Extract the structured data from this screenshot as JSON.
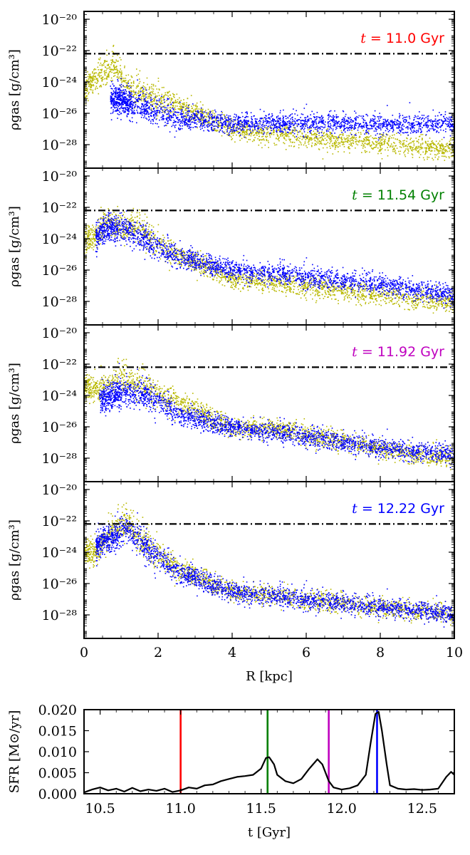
{
  "colors": {
    "yellow": "#b8b800",
    "blue": "#0000ff",
    "red": "#ff0000",
    "green": "#008000",
    "magenta": "#bf00bf",
    "threshold": "#000000",
    "sfr_line": "#000000"
  },
  "density": {
    "ylabel": "ρgas [g/cm³]",
    "y_ticks": [
      "10⁻²⁰",
      "10⁻²²",
      "10⁻²⁴",
      "10⁻²⁶",
      "10⁻²⁸"
    ],
    "y_tick_exps": [
      -20,
      -22,
      -24,
      -26,
      -28
    ],
    "x_ticks": [
      "0",
      "2",
      "4",
      "6",
      "8",
      "10"
    ],
    "x_tick_values": [
      0,
      2,
      4,
      6,
      8,
      10
    ],
    "xlabel": "R [kpc]",
    "threshold_log10": -22.2
  },
  "chart_data": [
    {
      "type": "scatter",
      "title": "t = 11.0 Gyr",
      "label_color": "#ff0000",
      "xlabel": "R [kpc]",
      "ylabel": "ρgas [g/cm³]",
      "xlim": [
        0,
        10
      ],
      "ylim_log10": [
        -29.5,
        -19.5
      ],
      "series": [
        {
          "name": "yellow",
          "color": "#b8b800",
          "points": [
            [
              0.1,
              -24.2
            ],
            [
              0.4,
              -23.6
            ],
            [
              0.8,
              -23.0
            ],
            [
              1.2,
              -24.4
            ],
            [
              1.8,
              -25.0
            ],
            [
              2.5,
              -25.5
            ],
            [
              4.0,
              -27.0
            ],
            [
              6.0,
              -27.5
            ],
            [
              8.0,
              -27.9
            ],
            [
              10.0,
              -28.3
            ]
          ]
        },
        {
          "name": "blue",
          "color": "#0000ff",
          "points": [
            [
              0.7,
              -25.0
            ],
            [
              1.5,
              -25.5
            ],
            [
              2.5,
              -26.3
            ],
            [
              4.0,
              -26.6
            ],
            [
              6.0,
              -26.6
            ],
            [
              8.0,
              -26.7
            ],
            [
              10.0,
              -26.6
            ]
          ]
        }
      ],
      "text_items": [
        "t =",
        "11.0 Gyr"
      ]
    },
    {
      "type": "scatter",
      "title": "t = 11.54 Gyr",
      "label_color": "#008000",
      "xlabel": "R [kpc]",
      "ylabel": "ρgas [g/cm³]",
      "xlim": [
        0,
        10
      ],
      "ylim_log10": [
        -29.5,
        -19.5
      ],
      "series": [
        {
          "name": "yellow",
          "color": "#b8b800",
          "points": [
            [
              0.2,
              -24.0
            ],
            [
              0.6,
              -23.0
            ],
            [
              1.0,
              -23.3
            ],
            [
              1.5,
              -23.2
            ],
            [
              2.0,
              -24.5
            ],
            [
              2.5,
              -25.0
            ],
            [
              4.0,
              -26.5
            ],
            [
              6.0,
              -27.0
            ],
            [
              8.0,
              -27.6
            ],
            [
              10.0,
              -28.1
            ]
          ]
        },
        {
          "name": "blue",
          "color": "#0000ff",
          "points": [
            [
              0.3,
              -23.8
            ],
            [
              0.7,
              -23.2
            ],
            [
              1.2,
              -23.5
            ],
            [
              1.8,
              -24.2
            ],
            [
              2.5,
              -25.1
            ],
            [
              4.0,
              -26.0
            ],
            [
              6.0,
              -26.4
            ],
            [
              8.0,
              -26.9
            ],
            [
              10.0,
              -27.6
            ]
          ]
        }
      ],
      "text_items": [
        "t =",
        "11.54 Gyr"
      ]
    },
    {
      "type": "scatter",
      "title": "t = 11.92 Gyr",
      "label_color": "#bf00bf",
      "xlabel": "R [kpc]",
      "ylabel": "ρgas [g/cm³]",
      "xlim": [
        0,
        10
      ],
      "ylim_log10": [
        -29.5,
        -19.5
      ],
      "series": [
        {
          "name": "yellow",
          "color": "#b8b800",
          "points": [
            [
              0.5,
              -23.5
            ],
            [
              1.0,
              -23.0
            ],
            [
              1.5,
              -23.3
            ],
            [
              2.0,
              -24.0
            ],
            [
              2.5,
              -24.4
            ],
            [
              4.0,
              -26.0
            ],
            [
              5.5,
              -26.2
            ],
            [
              8.0,
              -27.4
            ],
            [
              10.0,
              -28.0
            ]
          ]
        },
        {
          "name": "blue",
          "color": "#0000ff",
          "points": [
            [
              0.4,
              -24.3
            ],
            [
              1.0,
              -23.8
            ],
            [
              1.8,
              -24.0
            ],
            [
              2.5,
              -25.2
            ],
            [
              4.0,
              -26.0
            ],
            [
              6.0,
              -26.6
            ],
            [
              8.0,
              -27.3
            ],
            [
              10.0,
              -27.8
            ]
          ]
        }
      ],
      "text_items": [
        "t =",
        "11.92 Gyr"
      ]
    },
    {
      "type": "scatter",
      "title": "t = 12.22 Gyr",
      "label_color": "#0000ff",
      "xlabel": "R [kpc]",
      "ylabel": "ρgas [g/cm³]",
      "xlim": [
        0,
        10
      ],
      "ylim_log10": [
        -29.5,
        -19.5
      ],
      "series": [
        {
          "name": "yellow",
          "color": "#b8b800",
          "points": [
            [
              0.3,
              -24.0
            ],
            [
              0.8,
              -22.5
            ],
            [
              1.2,
              -22.2
            ],
            [
              1.8,
              -23.8
            ],
            [
              2.5,
              -25.0
            ],
            [
              4.0,
              -26.5
            ],
            [
              6.0,
              -27.0
            ],
            [
              8.0,
              -27.5
            ],
            [
              10.0,
              -27.9
            ]
          ]
        },
        {
          "name": "blue",
          "color": "#0000ff",
          "points": [
            [
              0.3,
              -23.5
            ],
            [
              0.8,
              -23.0
            ],
            [
              1.2,
              -22.5
            ],
            [
              1.6,
              -23.5
            ],
            [
              2.5,
              -25.2
            ],
            [
              4.0,
              -26.5
            ],
            [
              6.0,
              -27.0
            ],
            [
              8.0,
              -27.5
            ],
            [
              10.0,
              -27.9
            ]
          ]
        }
      ],
      "text_items": [
        "t =",
        "12.22 Gyr"
      ]
    },
    {
      "type": "line",
      "title": "",
      "xlabel": "t [Gyr]",
      "ylabel": "SFR [M⊙/yr]",
      "xlim": [
        10.4,
        12.7
      ],
      "ylim": [
        0,
        0.02
      ],
      "x_ticks": [
        "10.5",
        "11.0",
        "11.5",
        "12.0",
        "12.5"
      ],
      "x_tick_values": [
        10.5,
        11.0,
        11.5,
        12.0,
        12.5
      ],
      "y_ticks": [
        "0.000",
        "0.005",
        "0.010",
        "0.015",
        "0.020"
      ],
      "y_tick_values": [
        0,
        0.005,
        0.01,
        0.015,
        0.02
      ],
      "vlines": [
        {
          "x": 11.0,
          "color": "#ff0000"
        },
        {
          "x": 11.54,
          "color": "#008000"
        },
        {
          "x": 11.92,
          "color": "#bf00bf"
        },
        {
          "x": 12.22,
          "color": "#0000ff"
        }
      ],
      "series": [
        {
          "name": "SFR",
          "x": [
            10.4,
            10.45,
            10.5,
            10.55,
            10.6,
            10.65,
            10.7,
            10.75,
            10.8,
            10.85,
            10.9,
            10.95,
            11.0,
            11.05,
            11.1,
            11.15,
            11.2,
            11.25,
            11.3,
            11.35,
            11.4,
            11.45,
            11.5,
            11.53,
            11.55,
            11.58,
            11.6,
            11.65,
            11.7,
            11.75,
            11.8,
            11.85,
            11.88,
            11.92,
            11.95,
            12.0,
            12.05,
            12.1,
            12.15,
            12.18,
            12.21,
            12.23,
            12.25,
            12.28,
            12.3,
            12.35,
            12.4,
            12.45,
            12.5,
            12.55,
            12.6,
            12.65,
            12.68,
            12.7
          ],
          "values": [
            0.0003,
            0.001,
            0.0015,
            0.0008,
            0.0012,
            0.0005,
            0.0014,
            0.0006,
            0.001,
            0.0007,
            0.0012,
            0.0004,
            0.0008,
            0.0015,
            0.0012,
            0.002,
            0.0022,
            0.003,
            0.0035,
            0.004,
            0.0042,
            0.0045,
            0.006,
            0.0085,
            0.0087,
            0.007,
            0.0045,
            0.003,
            0.0025,
            0.0035,
            0.006,
            0.0082,
            0.007,
            0.003,
            0.0015,
            0.001,
            0.0013,
            0.002,
            0.0045,
            0.012,
            0.019,
            0.0195,
            0.015,
            0.007,
            0.002,
            0.0012,
            0.001,
            0.0011,
            0.0009,
            0.001,
            0.0012,
            0.004,
            0.0052,
            0.0045
          ]
        }
      ]
    }
  ]
}
